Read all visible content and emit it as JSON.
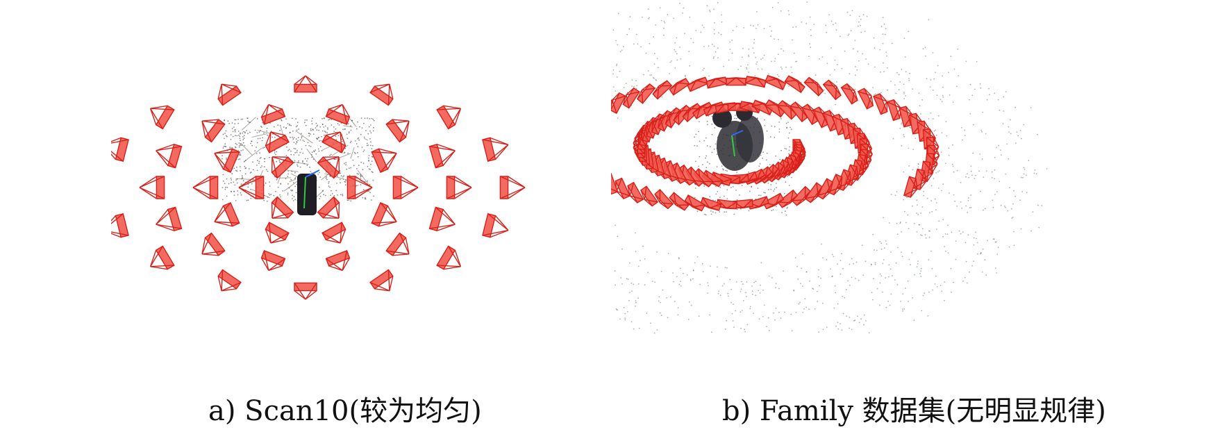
{
  "figure": {
    "panels": [
      {
        "caption": "a) Scan10(较为均匀)"
      },
      {
        "caption": "b) Family 数据集(无明显规律)"
      }
    ],
    "colors": {
      "camera_fill": "#f0554a",
      "camera_edge": "#d8201a",
      "point_cloud": "#3a4a3a",
      "object": "#2a2a30"
    }
  }
}
